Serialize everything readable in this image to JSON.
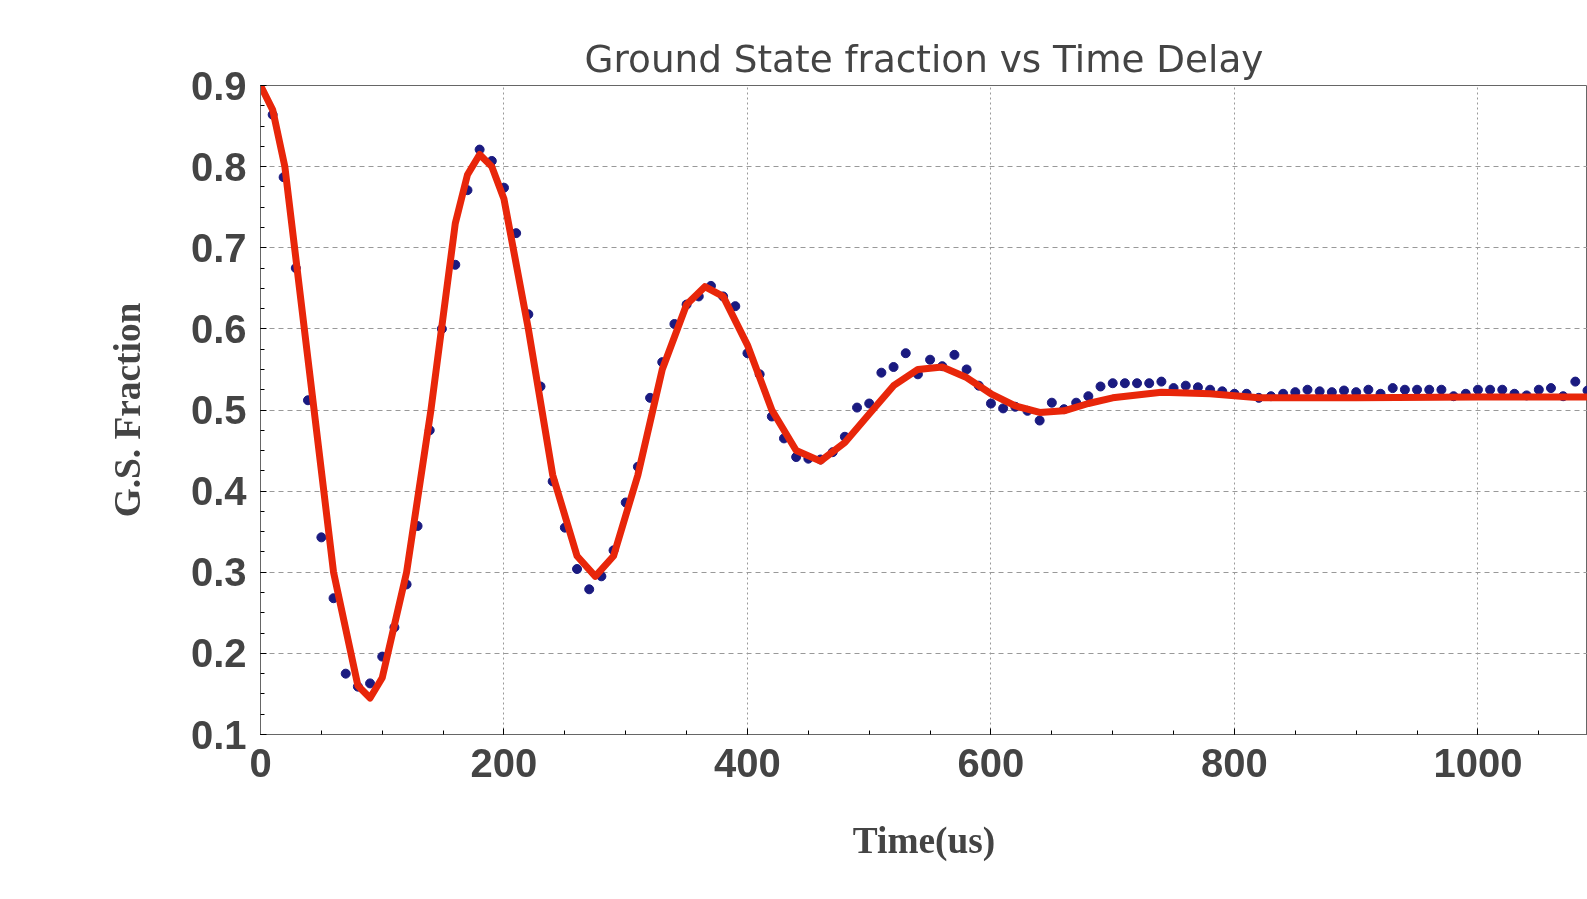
{
  "chart_data": {
    "type": "scatter",
    "title": "Ground State fraction vs Time Delay",
    "xlabel": "Time(us)",
    "ylabel": "G.S. Fraction",
    "xlim": [
      0,
      1090
    ],
    "ylim": [
      0.1,
      0.9
    ],
    "xticks": [
      0,
      200,
      400,
      600,
      800,
      1000
    ],
    "yticks": [
      0.1,
      0.2,
      0.3,
      0.4,
      0.5,
      0.6,
      0.7,
      0.8,
      0.9
    ],
    "grid": true,
    "series": [
      {
        "marker": "circle",
        "color": "#1a1a80",
        "x": [
          10,
          19,
          29,
          39,
          50,
          60,
          70,
          80,
          90,
          100,
          110,
          120,
          129,
          139,
          149,
          160,
          170,
          180,
          190,
          200,
          210,
          220,
          230,
          240,
          250,
          260,
          270,
          280,
          290,
          300,
          310,
          320,
          330,
          340,
          350,
          360,
          370,
          380,
          390,
          400,
          410,
          420,
          430,
          440,
          450,
          460,
          470,
          480,
          490,
          500,
          510,
          520,
          530,
          540,
          550,
          560,
          570,
          580,
          590,
          600,
          610,
          620,
          630,
          640,
          650,
          660,
          670,
          680,
          690,
          700,
          710,
          720,
          730,
          740,
          750,
          760,
          770,
          780,
          790,
          800,
          810,
          820,
          830,
          840,
          850,
          860,
          870,
          880,
          890,
          900,
          910,
          920,
          930,
          940,
          950,
          960,
          970,
          980,
          990,
          1000,
          1010,
          1020,
          1030,
          1040,
          1050,
          1060,
          1070,
          1080,
          1090
        ],
        "values": [
          0.864,
          0.787,
          0.675,
          0.512,
          0.343,
          0.268,
          0.175,
          0.159,
          0.163,
          0.196,
          0.232,
          0.285,
          0.357,
          0.475,
          0.6,
          0.679,
          0.771,
          0.821,
          0.807,
          0.774,
          0.718,
          0.618,
          0.529,
          0.412,
          0.355,
          0.304,
          0.279,
          0.295,
          0.327,
          0.386,
          0.43,
          0.515,
          0.559,
          0.606,
          0.63,
          0.64,
          0.653,
          0.64,
          0.628,
          0.57,
          0.544,
          0.492,
          0.465,
          0.442,
          0.44,
          0.439,
          0.448,
          0.467,
          0.503,
          0.508,
          0.546,
          0.553,
          0.57,
          0.544,
          0.562,
          0.554,
          0.568,
          0.55,
          0.53,
          0.508,
          0.502,
          0.504,
          0.499,
          0.487,
          0.509,
          0.501,
          0.509,
          0.517,
          0.529,
          0.533,
          0.533,
          0.533,
          0.533,
          0.535,
          0.527,
          0.53,
          0.528,
          0.525,
          0.523,
          0.52,
          0.52,
          0.515,
          0.517,
          0.52,
          0.522,
          0.525,
          0.523,
          0.522,
          0.524,
          0.522,
          0.525,
          0.52,
          0.527,
          0.525,
          0.525,
          0.525,
          0.525,
          0.517,
          0.52,
          0.525,
          0.525,
          0.525,
          0.52,
          0.518,
          0.525,
          0.527,
          0.517,
          0.535,
          0.524
        ]
      },
      {
        "type": "line",
        "line_style": "solid",
        "color": "#e8260a",
        "x": [
          0,
          10,
          20,
          40,
          60,
          80,
          90,
          100,
          120,
          140,
          160,
          170,
          180,
          190,
          200,
          220,
          240,
          260,
          275,
          290,
          310,
          330,
          350,
          365,
          380,
          400,
          420,
          440,
          460,
          480,
          500,
          520,
          540,
          560,
          580,
          600,
          620,
          640,
          660,
          680,
          700,
          740,
          780,
          820,
          900,
          1000,
          1090
        ],
        "values": [
          0.9,
          0.87,
          0.8,
          0.55,
          0.3,
          0.16,
          0.145,
          0.17,
          0.3,
          0.5,
          0.73,
          0.79,
          0.815,
          0.8,
          0.76,
          0.6,
          0.42,
          0.32,
          0.295,
          0.32,
          0.42,
          0.55,
          0.63,
          0.652,
          0.64,
          0.58,
          0.5,
          0.45,
          0.437,
          0.46,
          0.495,
          0.53,
          0.55,
          0.553,
          0.54,
          0.52,
          0.505,
          0.497,
          0.499,
          0.508,
          0.515,
          0.522,
          0.52,
          0.515,
          0.515,
          0.516,
          0.516
        ]
      }
    ]
  }
}
